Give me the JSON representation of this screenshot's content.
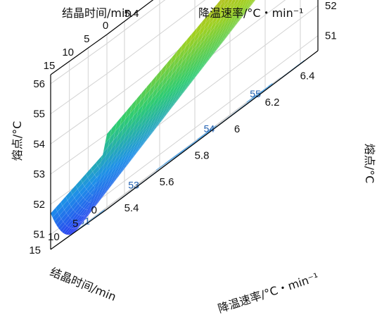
{
  "chart_data": {
    "type": "surface",
    "x_axis": {
      "label": "结晶时间/min",
      "range": [
        0,
        15
      ],
      "ticks": [
        "0",
        "5",
        "10",
        "15"
      ]
    },
    "y_axis": {
      "label": "降温速率/°C・min⁻¹",
      "range": [
        5.3,
        6.5
      ],
      "ticks": [
        "5.4",
        "5.6",
        "5.8",
        "6",
        "6.2",
        "6.4"
      ]
    },
    "z_axis": {
      "label": "熔点/°C",
      "range": [
        50.5,
        56.3
      ],
      "ticks": [
        "51",
        "52",
        "53",
        "54",
        "55",
        "56"
      ]
    },
    "surface_corners": [
      {
        "time": 15,
        "rate": 5.3,
        "melting_point": 51.7
      },
      {
        "time": 15,
        "rate": 6.5,
        "melting_point": 54.3
      },
      {
        "time": 0,
        "rate": 5.3,
        "melting_point": 53.0
      },
      {
        "time": 0,
        "rate": 6.5,
        "melting_point": 56.0
      }
    ],
    "surface_minimum": {
      "time": 7,
      "rate": 5.3,
      "melting_point": 50.6
    },
    "contour_labels": [
      "51",
      "53",
      "54",
      "55"
    ],
    "colormap": [
      "#2a3cf0",
      "#1e90e8",
      "#2ecc71",
      "#a0d020",
      "#c8b020",
      "#c0282a"
    ]
  }
}
